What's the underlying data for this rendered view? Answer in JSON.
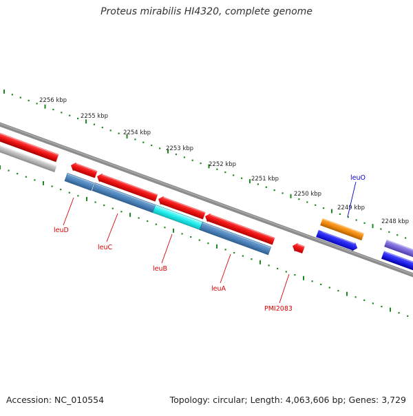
{
  "title": "Proteus mirabilis HI4320, complete genome",
  "footer": {
    "accession": "Accession: NC_010554",
    "summary": "Topology: circular; Length: 4,063,606 bp; Genes: 3,729"
  },
  "colors": {
    "backbone": "#8c8c8c",
    "forward_gene": "#ee1111",
    "reverse_gene": "#2424ee",
    "cds_steel": "#4f86bd",
    "highlight": "#22eeee",
    "orange_gene": "#f08a10",
    "purple_gene": "#7a68d8",
    "grey_feature": "#b8b8b8",
    "scale_ticks": "#1a8a1a",
    "gene_label": "#dd0000",
    "gene_label_alt": "#0000cc"
  },
  "scale_labels": [
    "2256 kbp",
    "2255 kbp",
    "2254 kbp",
    "2253 kbp",
    "2252 kbp",
    "2251 kbp",
    "2250 kbp",
    "2249 kbp",
    "2248 kbp"
  ],
  "gene_labels": [
    {
      "name": "leuD",
      "color": "red"
    },
    {
      "name": "leuC",
      "color": "red"
    },
    {
      "name": "leuB",
      "color": "red"
    },
    {
      "name": "leuA",
      "color": "red"
    },
    {
      "name": "PMI2083",
      "color": "red"
    },
    {
      "name": "leuO",
      "color": "blue"
    }
  ]
}
